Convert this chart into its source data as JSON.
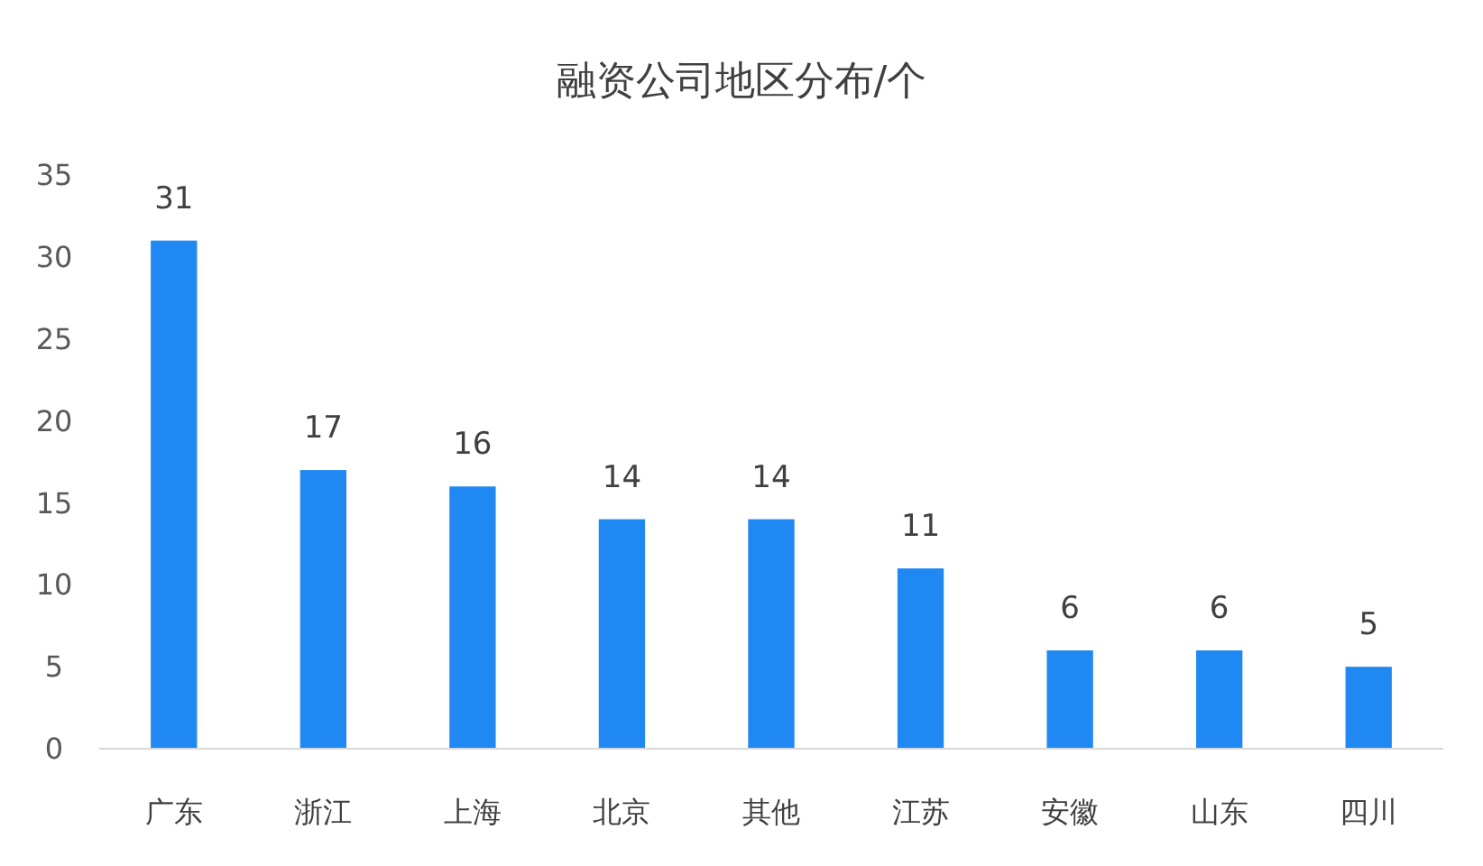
{
  "chart_data": {
    "type": "bar",
    "title": "融资公司地区分布/个",
    "categories": [
      "广东",
      "浙江",
      "上海",
      "北京",
      "其他",
      "江苏",
      "安徽",
      "山东",
      "四川"
    ],
    "values": [
      31,
      17,
      16,
      14,
      14,
      11,
      6,
      6,
      5
    ],
    "color": "#1f88f2",
    "ylim": [
      0,
      35
    ],
    "yticks": [
      0,
      5,
      10,
      15,
      20,
      25,
      30,
      35
    ],
    "grid": false,
    "data_labels": true
  }
}
